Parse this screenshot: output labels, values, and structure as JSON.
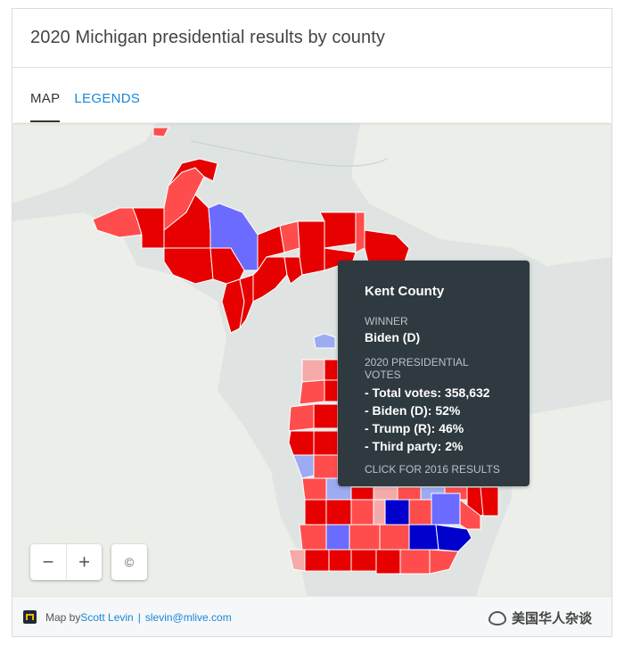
{
  "card": {
    "title": "2020 Michigan presidential results by county"
  },
  "tabs": [
    {
      "label": "MAP",
      "active": true
    },
    {
      "label": "LEGENDS",
      "active": false
    }
  ],
  "colors": {
    "dem_strong": "#0000cc",
    "dem_medium": "#6b6bff",
    "dem_light": "#9cabf2",
    "rep_strong": "#e60000",
    "rep_medium": "#ff4d4d",
    "rep_light": "#f5aaaa",
    "water": "#dfe4e3",
    "land": "#eef0ed",
    "tooltip_bg": "#2e3a40"
  },
  "tooltip": {
    "county": "Kent County",
    "winner_label": "WINNER",
    "winner": "Biden (D)",
    "votes_label": "2020 PRESIDENTIAL VOTES",
    "total": "- Total votes: 358,632",
    "biden": "- Biden (D): 52%",
    "trump": "- Trump (R): 46%",
    "third": "- Third party: 2%",
    "footer": "CLICK FOR 2016 RESULTS"
  },
  "controls": {
    "zoom_out": "−",
    "zoom_in": "+",
    "attribution": "©"
  },
  "footer": {
    "prefix": "Map by ",
    "author": "Scott Levin",
    "email": "slevin@mlive.com"
  },
  "watermark": "美国华人杂谈"
}
